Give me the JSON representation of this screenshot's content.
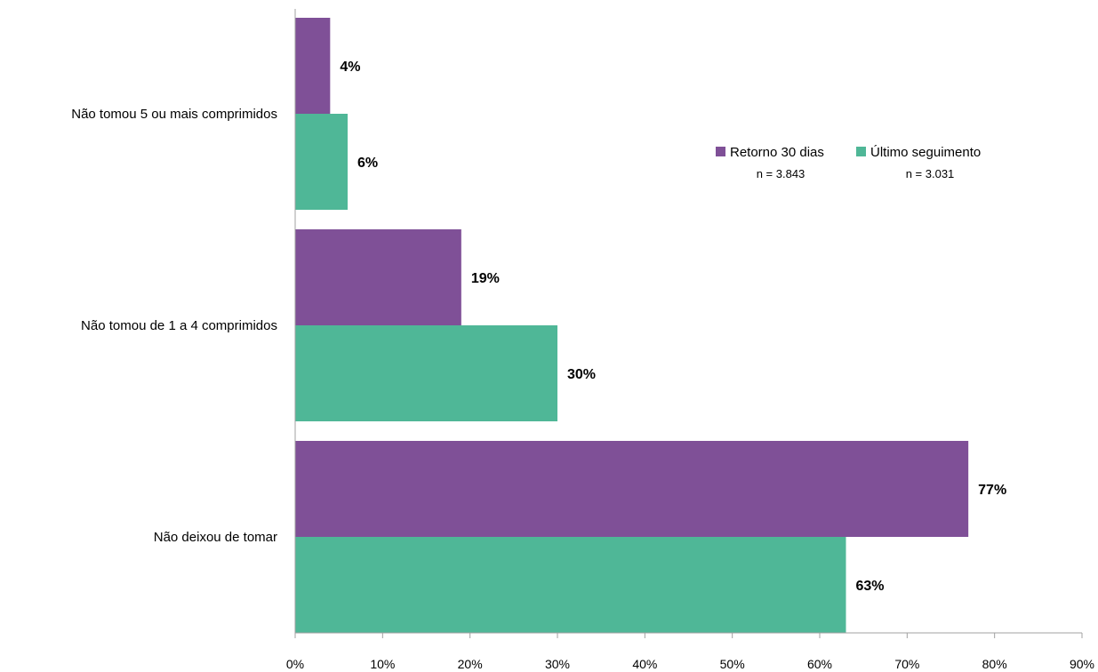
{
  "chart_data": {
    "type": "bar",
    "orientation": "horizontal",
    "categories": [
      "Não tomou 5 ou mais comprimidos",
      "Não tomou de 1 a 4 comprimidos",
      "Não deixou de tomar"
    ],
    "series": [
      {
        "name": "Retorno 30 dias",
        "n_label": "n = 3.843",
        "color": "#7f5097",
        "values": [
          4,
          19,
          77
        ],
        "labels": [
          "4%",
          "19%",
          "77%"
        ]
      },
      {
        "name": "Último seguimento",
        "n_label": "n = 3.031",
        "color": "#4fb797",
        "values": [
          6,
          30,
          63
        ],
        "labels": [
          "6%",
          "30%",
          "63%"
        ]
      }
    ],
    "xlim": [
      0,
      90
    ],
    "xticks": [
      0,
      10,
      20,
      30,
      40,
      50,
      60,
      70,
      80,
      90
    ],
    "xtick_labels": [
      "0%",
      "10%",
      "20%",
      "30%",
      "40%",
      "50%",
      "60%",
      "70%",
      "80%",
      "90%"
    ],
    "grid": false,
    "legend_position": "top-right"
  }
}
